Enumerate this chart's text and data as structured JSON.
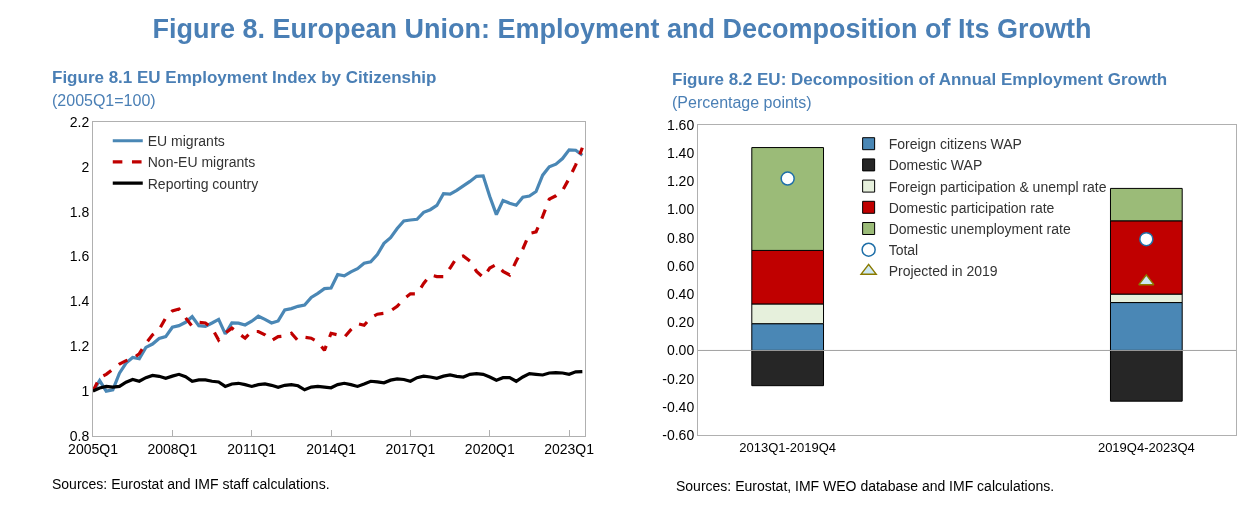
{
  "chart_data": [
    {
      "type": "other",
      "title": "Figure 8. European Union: Employment and Decomposition of Its Growth"
    },
    {
      "type": "line",
      "title": "Figure 8.1 EU Employment Index by Citizenship",
      "subtitle": "(2005Q1=100)",
      "annotations": [
        "Sources: Eurostat and IMF staff calculations."
      ],
      "categories": [
        "2005Q1",
        null,
        null,
        null,
        null,
        null,
        null,
        null,
        null,
        null,
        null,
        null,
        "2008Q1",
        null,
        null,
        null,
        null,
        null,
        null,
        null,
        null,
        null,
        null,
        null,
        "2011Q1",
        null,
        null,
        null,
        null,
        null,
        null,
        null,
        null,
        null,
        null,
        null,
        "2014Q1",
        null,
        null,
        null,
        null,
        null,
        null,
        null,
        null,
        null,
        null,
        null,
        "2017Q1",
        null,
        null,
        null,
        null,
        null,
        null,
        null,
        null,
        null,
        null,
        null,
        "2020Q1",
        null,
        null,
        null,
        null,
        null,
        null,
        null,
        null,
        null,
        null,
        null,
        "2023Q1",
        null,
        null
      ],
      "ylim": [
        0.8,
        2.2
      ],
      "yticks": [
        0.8,
        1,
        1.2,
        1.4,
        1.6,
        1.8,
        2,
        2.2
      ],
      "grid": false,
      "legend": "top left",
      "series": [
        {
          "name": "EU migrants",
          "color": "#4a87b5",
          "line_style": "solid",
          "values": [
            1.0,
            1.047,
            1.0,
            1.006,
            1.08,
            1.125,
            1.15,
            1.145,
            1.195,
            1.21,
            1.235,
            1.243,
            1.285,
            1.292,
            1.307,
            1.332,
            1.292,
            1.289,
            1.304,
            1.32,
            1.255,
            1.304,
            1.303,
            1.295,
            1.312,
            1.334,
            1.32,
            1.304,
            1.313,
            1.362,
            1.368,
            1.378,
            1.384,
            1.418,
            1.436,
            1.457,
            1.46,
            1.52,
            1.514,
            1.532,
            1.546,
            1.57,
            1.577,
            1.609,
            1.659,
            1.684,
            1.725,
            1.759,
            1.763,
            1.766,
            1.797,
            1.809,
            1.828,
            1.88,
            1.878,
            1.895,
            1.915,
            1.935,
            1.958,
            1.96,
            1.868,
            1.787,
            1.85,
            1.838,
            1.829,
            1.865,
            1.87,
            1.89,
            1.963,
            2.0,
            2.012,
            2.037,
            2.076,
            2.074,
            2.052
          ]
        },
        {
          "name": "Non-EU migrants",
          "color": "#c00000",
          "line_style": "dashed",
          "values": [
            1.0,
            1.06,
            1.075,
            1.098,
            1.121,
            1.136,
            1.144,
            1.167,
            1.213,
            1.251,
            1.274,
            1.327,
            1.358,
            1.366,
            1.327,
            1.289,
            1.307,
            1.304,
            1.281,
            1.228,
            1.258,
            1.281,
            1.258,
            1.236,
            1.266,
            1.266,
            1.251,
            1.225,
            1.243,
            1.246,
            1.258,
            1.225,
            1.24,
            1.236,
            1.22,
            1.182,
            1.258,
            1.251,
            1.24,
            1.274,
            1.301,
            1.294,
            1.327,
            1.343,
            1.347,
            1.358,
            1.378,
            1.411,
            1.434,
            1.434,
            1.48,
            1.518,
            1.511,
            1.511,
            1.549,
            1.595,
            1.603,
            1.58,
            1.534,
            1.507,
            1.549,
            1.565,
            1.534,
            1.518,
            1.58,
            1.634,
            1.703,
            1.71,
            1.779,
            1.856,
            1.871,
            1.894,
            1.948,
            2.009,
            2.085
          ]
        },
        {
          "name": "Reporting country",
          "color": "#000000",
          "line_style": "solid",
          "values": [
            1.0,
            1.014,
            1.021,
            1.018,
            1.021,
            1.04,
            1.052,
            1.044,
            1.06,
            1.07,
            1.066,
            1.057,
            1.067,
            1.075,
            1.064,
            1.044,
            1.05,
            1.05,
            1.044,
            1.041,
            1.021,
            1.032,
            1.035,
            1.029,
            1.021,
            1.029,
            1.032,
            1.026,
            1.017,
            1.026,
            1.029,
            1.024,
            1.006,
            1.018,
            1.021,
            1.018,
            1.015,
            1.029,
            1.035,
            1.029,
            1.021,
            1.032,
            1.044,
            1.041,
            1.037,
            1.049,
            1.055,
            1.052,
            1.044,
            1.06,
            1.067,
            1.063,
            1.057,
            1.067,
            1.072,
            1.066,
            1.063,
            1.075,
            1.078,
            1.075,
            1.063,
            1.049,
            1.06,
            1.06,
            1.044,
            1.063,
            1.078,
            1.075,
            1.072,
            1.081,
            1.083,
            1.081,
            1.075,
            1.086,
            1.087
          ]
        }
      ]
    },
    {
      "type": "bar",
      "stacked": true,
      "title": "Figure 8.2 EU: Decomposition of Annual Employment Growth",
      "subtitle": "(Percentage points)",
      "annotations": [
        "Sources: Eurostat, IMF WEO database and IMF calculations."
      ],
      "categories": [
        "2013Q1-2019Q4",
        "2019Q4-2023Q4"
      ],
      "ylim": [
        -0.6,
        1.6
      ],
      "yticks": [
        {
          "value": -0.6,
          "label": "-0.60"
        },
        {
          "value": -0.4,
          "label": "-0.40"
        },
        {
          "value": -0.2,
          "label": "-0.20"
        },
        {
          "value": 0,
          "label": "0.00"
        },
        {
          "value": 0.2,
          "label": "0.20"
        },
        {
          "value": 0.4,
          "label": "0.40"
        },
        {
          "value": 0.6,
          "label": "0.60"
        },
        {
          "value": 0.8,
          "label": "0.80"
        },
        {
          "value": 1,
          "label": "1.00"
        },
        {
          "value": 1.2,
          "label": "1.20"
        },
        {
          "value": 1.4,
          "label": "1.40"
        },
        {
          "value": 1.6,
          "label": "1.60"
        }
      ],
      "grid": false,
      "legend": "top",
      "ref_lines": [
        {
          "axis": "y",
          "value": 0,
          "color": "#a0a0a0"
        }
      ],
      "series": [
        {
          "name": "Foreign citizens WAP",
          "color": "#4a87b5",
          "values": [
            0.19,
            0.34
          ]
        },
        {
          "name": "Domestic WAP",
          "color": "#262626",
          "values": [
            -0.25,
            -0.36
          ]
        },
        {
          "name": "Foreign participation & unempl rate",
          "color": "#e6f0dc",
          "values": [
            0.14,
            0.06
          ]
        },
        {
          "name": "Domestic participation rate",
          "color": "#c00000",
          "values": [
            0.38,
            0.52
          ]
        },
        {
          "name": "Domestic unemployment rate",
          "color": "#9bbb78",
          "values": [
            0.73,
            0.23
          ]
        },
        {
          "name": "Total",
          "type": "scatter",
          "marker": "circle",
          "color": "#1f6fa8",
          "values": [
            1.22,
            0.79
          ]
        },
        {
          "name": "Projected in 2019",
          "type": "scatter",
          "marker": "triangle",
          "color": "#8a7a00",
          "values": [
            null,
            0.49
          ]
        }
      ]
    }
  ]
}
